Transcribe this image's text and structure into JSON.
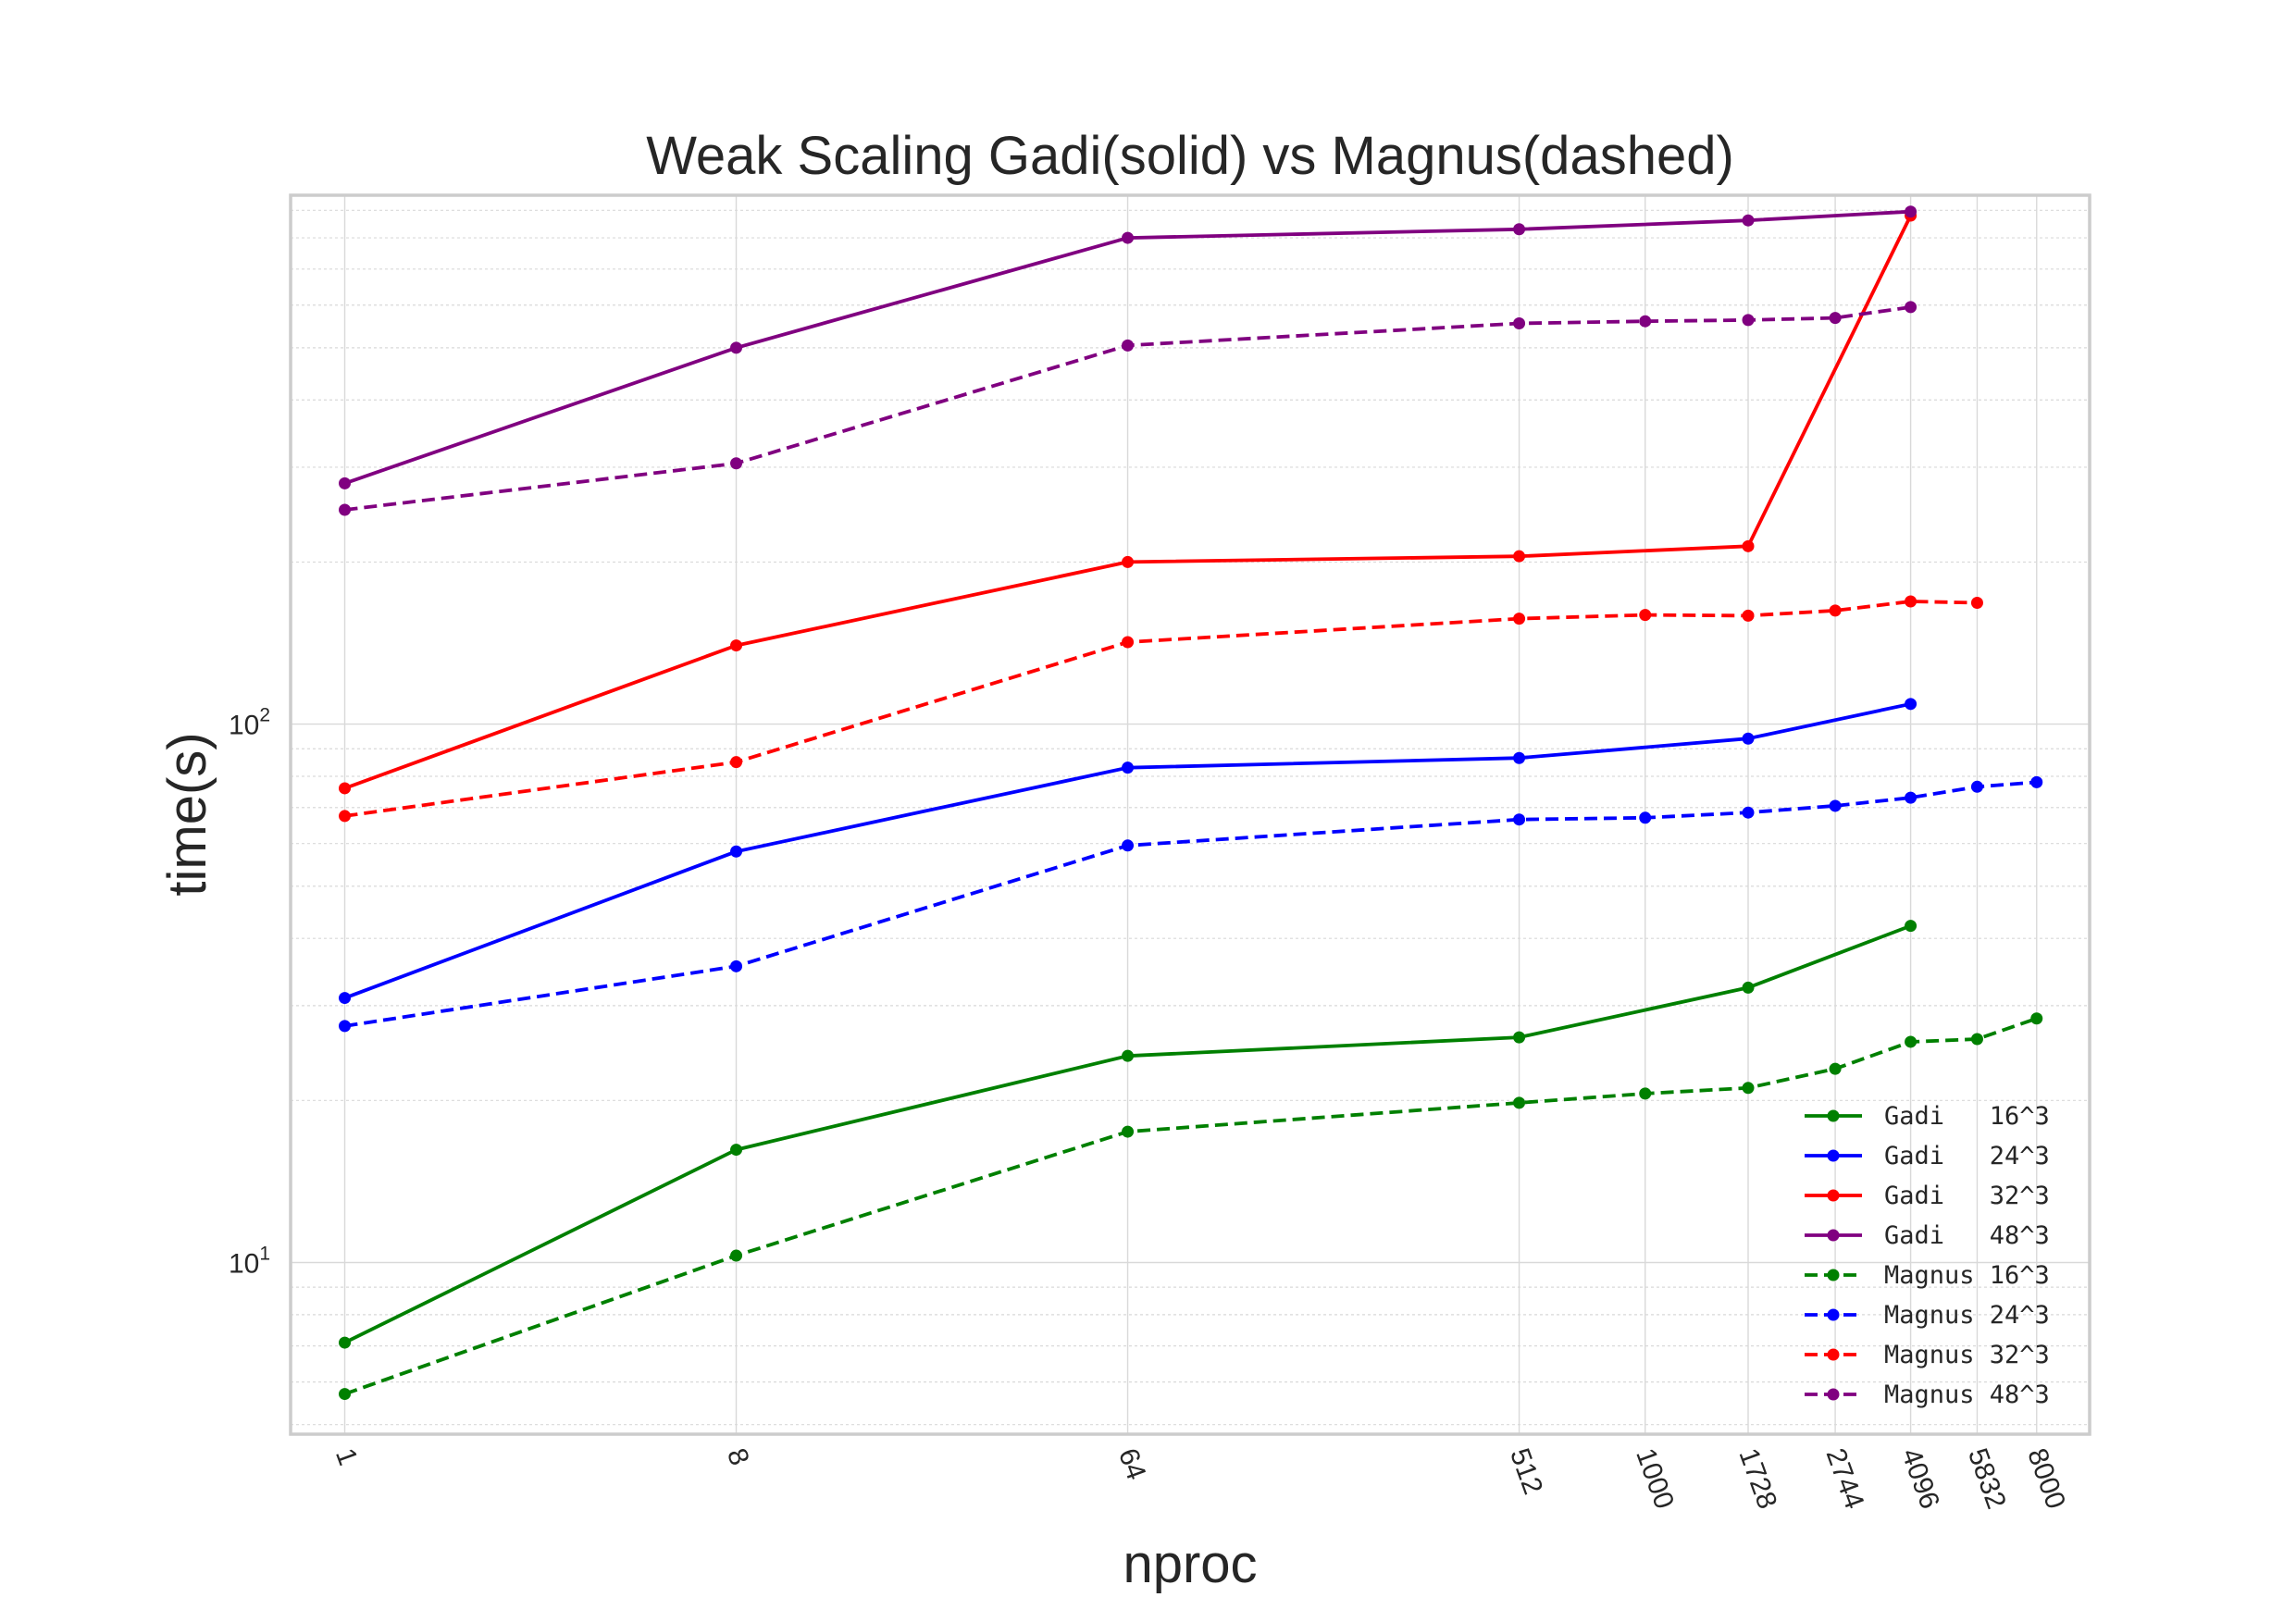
{
  "chart_data": {
    "type": "line",
    "title": "Weak Scaling Gadi(solid) vs Magnus(dashed)",
    "xlabel": "nproc",
    "ylabel": "time(s)",
    "x_scale": "log",
    "y_scale": "log",
    "x_ticks": [
      1,
      8,
      64,
      512,
      1000,
      1728,
      2744,
      4096,
      5832,
      8000
    ],
    "x_tick_labels": [
      "1",
      "8",
      "64",
      "512",
      "1000",
      "1728",
      "2744",
      "4096",
      "5832",
      "8000"
    ],
    "x_tick_label_rotation": 70,
    "xlim": [
      0.75,
      10600
    ],
    "y_ticks": [
      10,
      100
    ],
    "y_tick_labels": [
      {
        "base": "10",
        "exp": "1"
      },
      {
        "base": "10",
        "exp": "2"
      }
    ],
    "ylim": [
      4.8,
      960
    ],
    "grid": "on (major and minor)",
    "legend_position": "lower right",
    "series": [
      {
        "name": "Gadi   16^3",
        "color": "#008000",
        "style": "solid",
        "x": [
          1,
          8,
          64,
          512,
          1728,
          4096
        ],
        "y": [
          7.1,
          16.2,
          24.2,
          26.2,
          32.4,
          42.2
        ]
      },
      {
        "name": "Gadi   24^3",
        "color": "#0000ff",
        "style": "solid",
        "x": [
          1,
          8,
          64,
          512,
          1728,
          4096
        ],
        "y": [
          31.0,
          58.0,
          83.0,
          86.5,
          94.0,
          109.0
        ]
      },
      {
        "name": "Gadi   32^3",
        "color": "#ff0000",
        "style": "solid",
        "x": [
          1,
          8,
          64,
          512,
          1728,
          4096
        ],
        "y": [
          76.0,
          140.0,
          200.0,
          205.0,
          214.0,
          880.0
        ]
      },
      {
        "name": "Gadi   48^3",
        "color": "#800080",
        "style": "solid",
        "x": [
          1,
          8,
          64,
          512,
          1728,
          4096
        ],
        "y": [
          280.0,
          500.0,
          800.0,
          830.0,
          862.0,
          895.0
        ]
      },
      {
        "name": "Magnus 16^3",
        "color": "#008000",
        "style": "dashed",
        "x": [
          1,
          8,
          64,
          512,
          1000,
          1728,
          2744,
          4096,
          5832,
          8000
        ],
        "y": [
          5.7,
          10.3,
          17.5,
          19.8,
          20.6,
          21.1,
          22.9,
          25.7,
          26.0,
          28.4
        ]
      },
      {
        "name": "Magnus 24^3",
        "color": "#0000ff",
        "style": "dashed",
        "x": [
          1,
          8,
          64,
          512,
          1000,
          1728,
          2744,
          4096,
          5832,
          8000
        ],
        "y": [
          27.5,
          35.5,
          59.5,
          66.5,
          67.0,
          68.5,
          70.5,
          73.0,
          76.5,
          78.0
        ]
      },
      {
        "name": "Magnus 32^3",
        "color": "#ff0000",
        "style": "dashed",
        "x": [
          1,
          8,
          64,
          512,
          1000,
          1728,
          2744,
          4096,
          5832
        ],
        "y": [
          67.5,
          85.0,
          142.0,
          157.0,
          159.5,
          159.0,
          162.5,
          169.0,
          168.0
        ]
      },
      {
        "name": "Magnus 48^3",
        "color": "#800080",
        "style": "dashed",
        "x": [
          1,
          8,
          64,
          512,
          1000,
          1728,
          2744,
          4096
        ],
        "y": [
          250.0,
          305.0,
          505.0,
          555.0,
          560.0,
          563.0,
          568.0,
          595.0
        ]
      }
    ]
  }
}
